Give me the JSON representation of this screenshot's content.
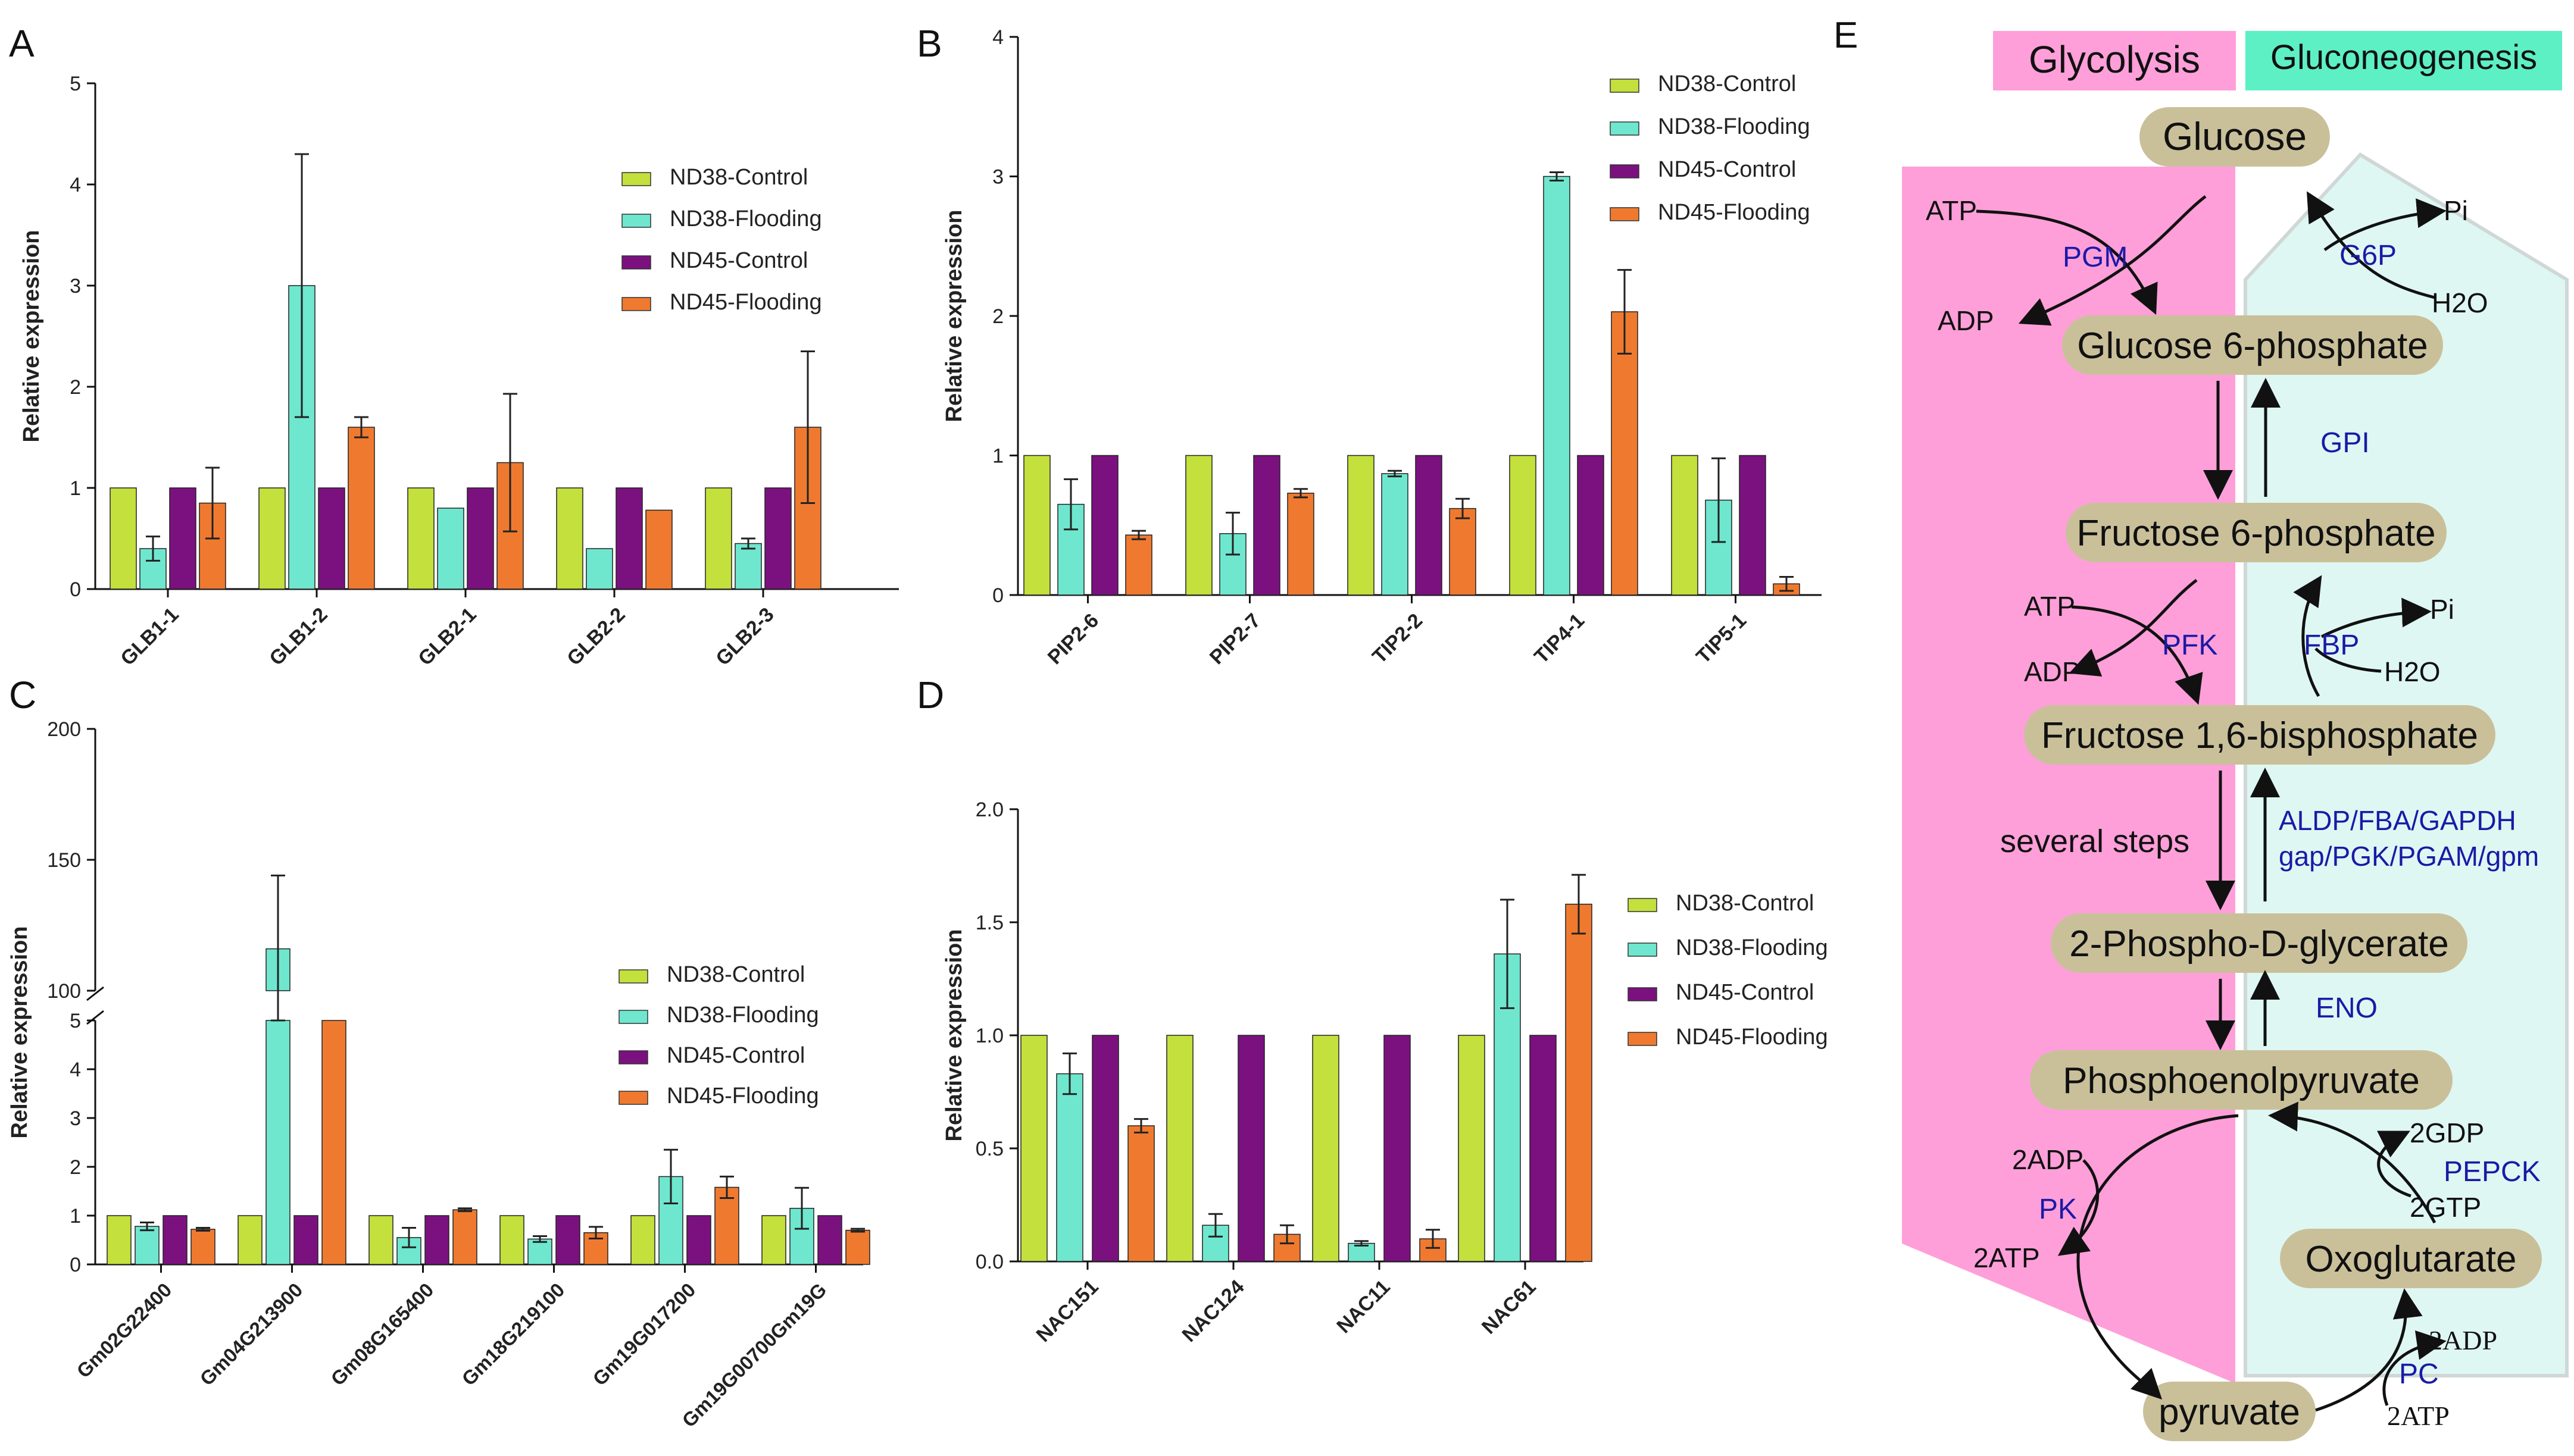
{
  "colors": {
    "ND38-Control": "#c3e03c",
    "ND38-Flooding": "#6fe7cf",
    "ND45-Control": "#7b117f",
    "ND45-Flooding": "#ef7a2f",
    "glycolysis": "#ff9fd9",
    "gluconeogenesis": "#5df0c5",
    "pathway_bg_right": "#dff7f3",
    "node_fill": "#c9c09a",
    "enzyme_text": "#1a1aa6"
  },
  "series_names": [
    "ND38-Control",
    "ND38-Flooding",
    "ND45-Control",
    "ND45-Flooding"
  ],
  "chart_data": [
    {
      "id": "A",
      "panel_label": "A",
      "type": "bar",
      "ylabel": "Relative expression",
      "ylim": [
        0,
        5
      ],
      "yticks": [
        "0",
        "1",
        "2",
        "3",
        "4",
        "5"
      ],
      "categories": [
        "GLB1-1",
        "GLB1-2",
        "GLB2-1",
        "GLB2-2",
        "GLB2-3"
      ],
      "series": [
        {
          "name": "ND38-Control",
          "values": [
            1,
            1,
            1,
            1,
            1
          ],
          "errors": [
            0,
            0,
            0,
            0,
            0
          ]
        },
        {
          "name": "ND38-Flooding",
          "values": [
            0.4,
            3.0,
            0.8,
            0.4,
            0.45
          ],
          "errors": [
            0.12,
            1.3,
            0,
            0,
            0.05
          ]
        },
        {
          "name": "ND45-Control",
          "values": [
            1,
            1,
            1,
            1,
            1
          ],
          "errors": [
            0,
            0,
            0,
            0,
            0
          ]
        },
        {
          "name": "ND45-Flooding",
          "values": [
            0.85,
            1.6,
            1.25,
            0.78,
            1.6
          ],
          "errors": [
            0.35,
            0.1,
            0.68,
            0,
            0.75
          ]
        }
      ],
      "legend": [
        "ND38-Control",
        "ND38-Flooding",
        "ND45-Control",
        "ND45-Flooding"
      ]
    },
    {
      "id": "B",
      "panel_label": "B",
      "type": "bar",
      "ylabel": "Relative expression",
      "ylim": [
        0,
        4
      ],
      "yticks": [
        "0",
        "1",
        "2",
        "3",
        "4"
      ],
      "categories": [
        "PIP2-6",
        "PIP2-7",
        "TIP2-2",
        "TIP4-1",
        "TIP5-1"
      ],
      "series": [
        {
          "name": "ND38-Control",
          "values": [
            1,
            1,
            1,
            1,
            1
          ],
          "errors": [
            0,
            0,
            0,
            0,
            0
          ]
        },
        {
          "name": "ND38-Flooding",
          "values": [
            0.65,
            0.44,
            0.87,
            3.0,
            0.68
          ],
          "errors": [
            0.18,
            0.15,
            0.02,
            0.03,
            0.3
          ]
        },
        {
          "name": "ND45-Control",
          "values": [
            1,
            1,
            1,
            1,
            1
          ],
          "errors": [
            0,
            0,
            0,
            0,
            0
          ]
        },
        {
          "name": "ND45-Flooding",
          "values": [
            0.43,
            0.73,
            0.62,
            2.03,
            0.08
          ],
          "errors": [
            0.03,
            0.03,
            0.07,
            0.3,
            0.05
          ]
        }
      ],
      "legend": [
        "ND38-Control",
        "ND38-Flooding",
        "ND45-Control",
        "ND45-Flooding"
      ]
    },
    {
      "id": "C",
      "panel_label": "C",
      "type": "bar",
      "ylabel": "Relative expression",
      "ylim_lower": [
        0,
        5
      ],
      "ylim_upper": [
        100,
        200
      ],
      "yticks_lower": [
        "0",
        "1",
        "2",
        "3",
        "4",
        "5"
      ],
      "yticks_upper": [
        "100",
        "150",
        "200"
      ],
      "categories": [
        "Gm02G22400",
        "Gm04G213900",
        "Gm08G165400",
        "Gm18G219100",
        "Gm19G017200",
        "Gm19G00700Gm19G"
      ],
      "series": [
        {
          "name": "ND38-Control",
          "values": [
            1,
            1,
            1,
            1,
            1,
            1
          ],
          "errors": [
            0,
            0,
            0,
            0,
            0,
            0
          ]
        },
        {
          "name": "ND38-Flooding",
          "values": [
            0.78,
            116,
            0.55,
            0.52,
            1.8,
            1.15
          ],
          "errors": [
            0.08,
            28,
            0.2,
            0.06,
            0.55,
            0.42
          ]
        },
        {
          "name": "ND45-Control",
          "values": [
            1,
            1,
            1,
            1,
            1,
            1
          ],
          "errors": [
            0,
            0,
            0,
            0,
            0,
            0
          ]
        },
        {
          "name": "ND45-Flooding",
          "values": [
            0.72,
            5,
            1.12,
            0.65,
            1.58,
            0.7
          ],
          "errors": [
            0.03,
            0,
            0.03,
            0.12,
            0.22,
            0.03
          ]
        }
      ],
      "legend": [
        "ND38-Control",
        "ND38-Flooding",
        "ND45-Control",
        "ND45-Flooding"
      ]
    },
    {
      "id": "D",
      "panel_label": "D",
      "type": "bar",
      "ylabel": "Relative expression",
      "ylim": [
        0,
        2.0
      ],
      "yticks": [
        "0.0",
        "0.5",
        "1.0",
        "1.5",
        "2.0"
      ],
      "categories": [
        "NAC151",
        "NAC124",
        "NAC11",
        "NAC61"
      ],
      "series": [
        {
          "name": "ND38-Control",
          "values": [
            1,
            1,
            1,
            1
          ],
          "errors": [
            0,
            0,
            0,
            0
          ]
        },
        {
          "name": "ND38-Flooding",
          "values": [
            0.83,
            0.16,
            0.08,
            1.36
          ],
          "errors": [
            0.09,
            0.05,
            0.01,
            0.24
          ]
        },
        {
          "name": "ND45-Control",
          "values": [
            1,
            1,
            1,
            1
          ],
          "errors": [
            0,
            0,
            0,
            0
          ]
        },
        {
          "name": "ND45-Flooding",
          "values": [
            0.6,
            0.12,
            0.1,
            1.58
          ],
          "errors": [
            0.03,
            0.04,
            0.04,
            0.13
          ]
        }
      ],
      "legend": [
        "ND38-Control",
        "ND38-Flooding",
        "ND45-Control",
        "ND45-Flooding"
      ]
    }
  ],
  "pathway": {
    "panel_label": "E",
    "header_left": "Glycolysis",
    "header_right": "Gluconeogenesis",
    "nodes": {
      "glucose": "Glucose",
      "g6p": "Glucose 6-phosphate",
      "f6p": "Fructose 6-phosphate",
      "f16bp": "Fructose 1,6-bisphosphate",
      "pdg": "2-Phospho-D-glycerate",
      "pep": "Phosphoenolpyruvate",
      "oxo": "Oxoglutarate",
      "pyr": "pyruvate"
    },
    "enzymes": {
      "pgm": "PGM",
      "g6p": "G6P",
      "gpi": "GPI",
      "pfk": "PFK",
      "fbp": "FBP",
      "aldp1": "ALDP/FBA/GAPDH",
      "aldp2": "gap/PGK/PGAM/gpm",
      "eno": "ENO",
      "pk": "PK",
      "pepck": "PEPCK",
      "pc": "PC"
    },
    "cofactors": {
      "atp1": "ATP",
      "adp1": "ADP",
      "pi1": "Pi",
      "h2o1": "H2O",
      "atp2": "ATP",
      "adp2": "ADP",
      "pi2": "Pi",
      "h2o2": "H2O",
      "adp2x": "2ADP",
      "atp2x": "2ATP",
      "gdp2x": "2GDP",
      "gtp2x": "2GTP",
      "adp2x_b": "2ADP",
      "atp2x_b": "2ATP"
    },
    "several_steps": "several steps"
  }
}
